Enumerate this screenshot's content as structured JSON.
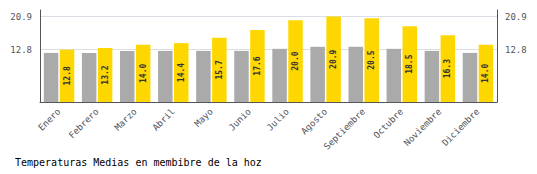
{
  "chart_data": {
    "type": "bar",
    "title": "Temperaturas Medias en membibre de la hoz",
    "categories": [
      "Enero",
      "Febrero",
      "Marzo",
      "Abril",
      "Mayo",
      "Junio",
      "Julio",
      "Agosto",
      "Septiembre",
      "Octubre",
      "Noviembre",
      "Diciembre"
    ],
    "series": [
      {
        "color": "#AAAAAA",
        "values": [
          12.0,
          12.0,
          12.5,
          12.5,
          12.5,
          12.5,
          13.0,
          13.5,
          13.5,
          13.0,
          12.5,
          12.0
        ]
      },
      {
        "color": "#FFD700",
        "values": [
          12.8,
          13.2,
          14.0,
          14.4,
          15.7,
          17.6,
          20.0,
          20.9,
          20.5,
          18.5,
          16.3,
          14.0
        ],
        "data_labels": true,
        "value_labels": [
          "12.8",
          "13.2",
          "14.0",
          "14.4",
          "15.7",
          "17.6",
          "20.0",
          "20.9",
          "20.5",
          "18.5",
          "16.3",
          "14.0"
        ]
      }
    ],
    "ylim": [
      0,
      22.5
    ],
    "yticks": [
      12.8,
      20.9
    ],
    "y2lim": [
      0,
      22.5
    ],
    "y2ticks": [
      12.8,
      20.9
    ],
    "grid": true
  }
}
